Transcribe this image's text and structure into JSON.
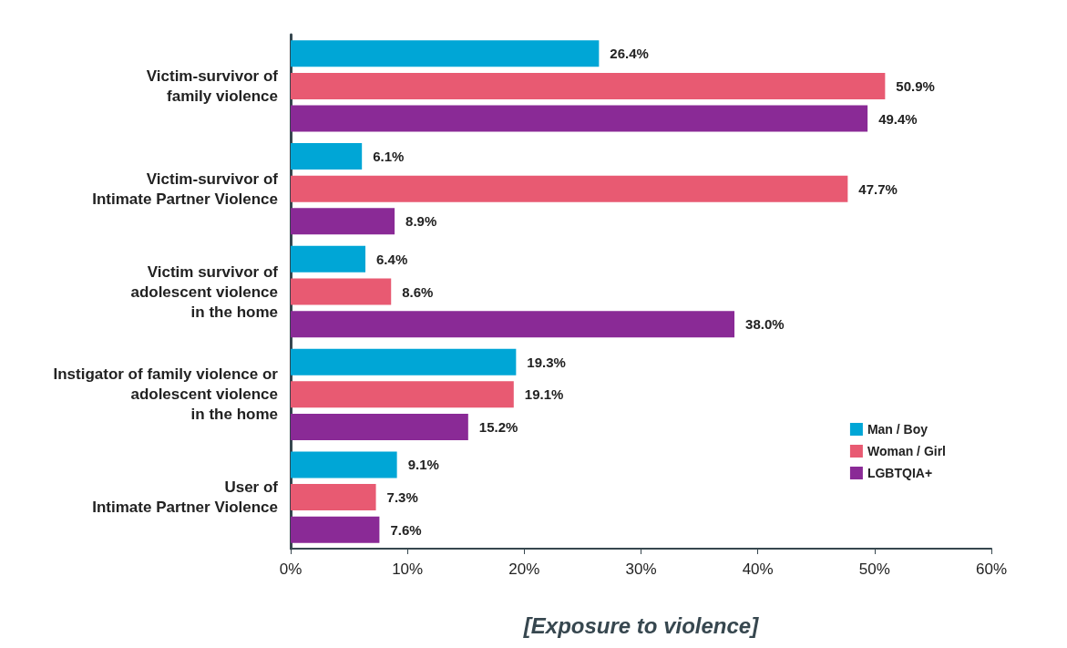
{
  "chart_data": {
    "type": "bar",
    "orientation": "horizontal",
    "xlabel": "[Exposure to violence]",
    "categories": [
      "Victim-survivor of\nfamily violence",
      "Victim-survivor of\nIntimate Partner Violence",
      "Victim survivor of\nadolescent violence\nin the home",
      "Instigator of family violence or\nadolescent violence\nin the home",
      "User of\nIntimate Partner Violence"
    ],
    "series": [
      {
        "name": "Man / Boy",
        "color": "#00a6d6",
        "values": [
          26.4,
          6.1,
          6.4,
          19.3,
          9.1
        ],
        "value_labels": [
          "26.4%",
          "6.1%",
          "6.4%",
          "19.3%",
          "9.1%"
        ]
      },
      {
        "name": "Woman / Girl",
        "color": "#e85a72",
        "values": [
          50.9,
          47.7,
          8.6,
          19.1,
          7.3
        ],
        "value_labels": [
          "50.9%",
          "47.7%",
          "8.6%",
          "19.1%",
          "7.3%"
        ]
      },
      {
        "name": "LGBTQIA+",
        "color": "#8a2a96",
        "values": [
          49.4,
          8.9,
          38.0,
          15.2,
          7.6
        ],
        "value_labels": [
          "49.4%",
          "8.9%",
          "38.0%",
          "15.2%",
          "7.6%"
        ]
      }
    ],
    "xlim": [
      0,
      60
    ],
    "xticks": [
      {
        "value": 0,
        "label": "0%"
      },
      {
        "value": 10,
        "label": "10%"
      },
      {
        "value": 20,
        "label": "20%"
      },
      {
        "value": 30,
        "label": "30%"
      },
      {
        "value": 40,
        "label": "40%"
      },
      {
        "value": 50,
        "label": "50%"
      },
      {
        "value": 60,
        "label": "60%"
      }
    ],
    "grid": false,
    "legend": "bottom right"
  }
}
